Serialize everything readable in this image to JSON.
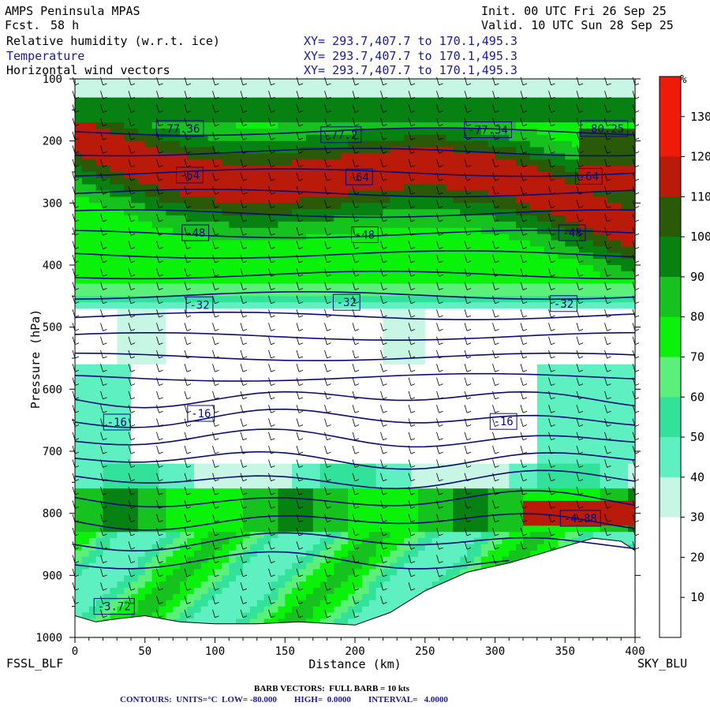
{
  "header": {
    "model": "AMPS Peninsula MPAS",
    "fcst_label": "Fcst.",
    "fcst_value": "58 h",
    "init": "Init. 00 UTC Fri 26 Sep 25",
    "valid": "Valid. 10 UTC Sun 28 Sep 25"
  },
  "fields": [
    {
      "name": "Relative humidity (w.r.t. ice)",
      "xy": "XY= 293.7,407.7 to 170.1,495.3",
      "color": "#000000"
    },
    {
      "name": "Temperature",
      "xy": "XY= 293.7,407.7 to 170.1,495.3",
      "color": "#1a1a9c"
    },
    {
      "name": "Horizontal wind vectors",
      "xy": "XY= 293.7,407.7 to 170.1,495.3",
      "color": "#000000"
    }
  ],
  "endpoints": {
    "left": "FSSL_BLF",
    "right": "SKY_BLU"
  },
  "footer": {
    "barb": "BARB VECTORS:  FULL BARB = 10 kts",
    "contours": "CONTOURS:  UNITS=°C  LOW= -80.000        HIGH=  0.0000        INTERVAL=   4.0000"
  },
  "colorbar": {
    "unit": "%",
    "ticks": [
      "130",
      "120",
      "110",
      "100",
      "90",
      "80",
      "70",
      "60",
      "50",
      "40",
      "30",
      "20",
      "10"
    ],
    "bins": [
      {
        "min": 0,
        "max": 10,
        "color": "#ffffff"
      },
      {
        "min": 10,
        "max": 20,
        "color": "#ffffff"
      },
      {
        "min": 20,
        "max": 30,
        "color": "#ffffff"
      },
      {
        "min": 30,
        "max": 40,
        "color": "#c8f6e4"
      },
      {
        "min": 40,
        "max": 50,
        "color": "#5ef0c0"
      },
      {
        "min": 50,
        "max": 60,
        "color": "#32e29a"
      },
      {
        "min": 60,
        "max": 70,
        "color": "#5bf07a"
      },
      {
        "min": 70,
        "max": 80,
        "color": "#0af20a"
      },
      {
        "min": 80,
        "max": 90,
        "color": "#16c21e"
      },
      {
        "min": 90,
        "max": 100,
        "color": "#078212"
      },
      {
        "min": 100,
        "max": 110,
        "color": "#2a5a08"
      },
      {
        "min": 110,
        "max": 120,
        "color": "#b91a0a"
      },
      {
        "min": 120,
        "max": 130,
        "color": "#ee1a0a"
      },
      {
        "min": 130,
        "max": 140,
        "color": "#ee1a0a"
      }
    ]
  },
  "chart_data": {
    "type": "heatmap",
    "xlabel": "Distance (km)",
    "ylabel": "Pressure (hPa)",
    "xlim": [
      0,
      400
    ],
    "ylim": [
      1000,
      100
    ],
    "xticks": [
      "0",
      "50",
      "100",
      "150",
      "200",
      "250",
      "300",
      "350",
      "400"
    ],
    "yticks": [
      "100",
      "200",
      "300",
      "400",
      "500",
      "600",
      "700",
      "800",
      "900",
      "1000"
    ],
    "temperature_contour_labels": [
      {
        "x": 28,
        "p": 950,
        "label": "-3.72"
      },
      {
        "x": 75,
        "p": 180,
        "label": "-77.36"
      },
      {
        "x": 190,
        "p": 190,
        "label": "-77.2"
      },
      {
        "x": 295,
        "p": 182,
        "label": "-77.34"
      },
      {
        "x": 378,
        "p": 180,
        "label": "-80.25"
      },
      {
        "x": 82,
        "p": 255,
        "label": "-64"
      },
      {
        "x": 203,
        "p": 258,
        "label": "-64"
      },
      {
        "x": 367,
        "p": 257,
        "label": "-64"
      },
      {
        "x": 86,
        "p": 348,
        "label": "-48"
      },
      {
        "x": 207,
        "p": 351,
        "label": "-48"
      },
      {
        "x": 355,
        "p": 348,
        "label": "-48"
      },
      {
        "x": 89,
        "p": 464,
        "label": "-32"
      },
      {
        "x": 194,
        "p": 460,
        "label": "-32"
      },
      {
        "x": 349,
        "p": 462,
        "label": "-32"
      },
      {
        "x": 30,
        "p": 653,
        "label": "-16"
      },
      {
        "x": 90,
        "p": 639,
        "label": "-16"
      },
      {
        "x": 306,
        "p": 652,
        "label": "-16"
      },
      {
        "x": 361,
        "p": 808,
        "label": "-4.88"
      }
    ],
    "terrain_top_hPa": [
      {
        "x": 0,
        "p": 965
      },
      {
        "x": 15,
        "p": 975
      },
      {
        "x": 30,
        "p": 970
      },
      {
        "x": 50,
        "p": 965
      },
      {
        "x": 75,
        "p": 975
      },
      {
        "x": 100,
        "p": 978
      },
      {
        "x": 130,
        "p": 978
      },
      {
        "x": 160,
        "p": 975
      },
      {
        "x": 200,
        "p": 980
      },
      {
        "x": 225,
        "p": 960
      },
      {
        "x": 250,
        "p": 925
      },
      {
        "x": 280,
        "p": 895
      },
      {
        "x": 310,
        "p": 880
      },
      {
        "x": 340,
        "p": 860
      },
      {
        "x": 370,
        "p": 840
      },
      {
        "x": 390,
        "p": 845
      },
      {
        "x": 400,
        "p": 860
      }
    ]
  }
}
